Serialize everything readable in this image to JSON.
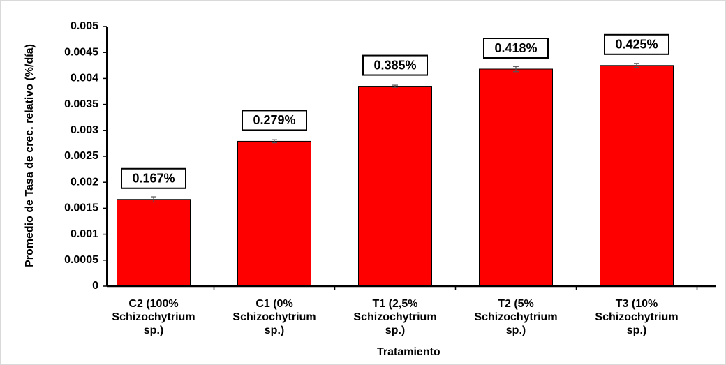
{
  "chart_data": {
    "type": "bar",
    "categories": [
      "C2 (100% Schizochytrium sp.)",
      "C1 (0% Schizochytrium sp.)",
      "T1 (2,5% Schizochytrium sp.)",
      "T2 (5% Schizochytrium sp.)",
      "T3 (10% Schizochytrium sp.)"
    ],
    "values": [
      0.00167,
      0.00279,
      0.00385,
      0.00418,
      0.00425
    ],
    "value_labels": [
      "0.167%",
      "0.279%",
      "0.385%",
      "0.418%",
      "0.425%"
    ],
    "errors": [
      5e-05,
      3e-05,
      2e-05,
      5e-05,
      4e-05
    ],
    "color": "#ff0000",
    "ylabel": "Promedio de Tasa de crec. relativo (%/día)",
    "xlabel": "Tratamiento",
    "ylim": [
      0,
      0.005
    ],
    "yticks": [
      0,
      0.0005,
      0.001,
      0.0015,
      0.002,
      0.0025,
      0.003,
      0.0035,
      0.004,
      0.0045,
      0.005
    ],
    "grid": false
  }
}
